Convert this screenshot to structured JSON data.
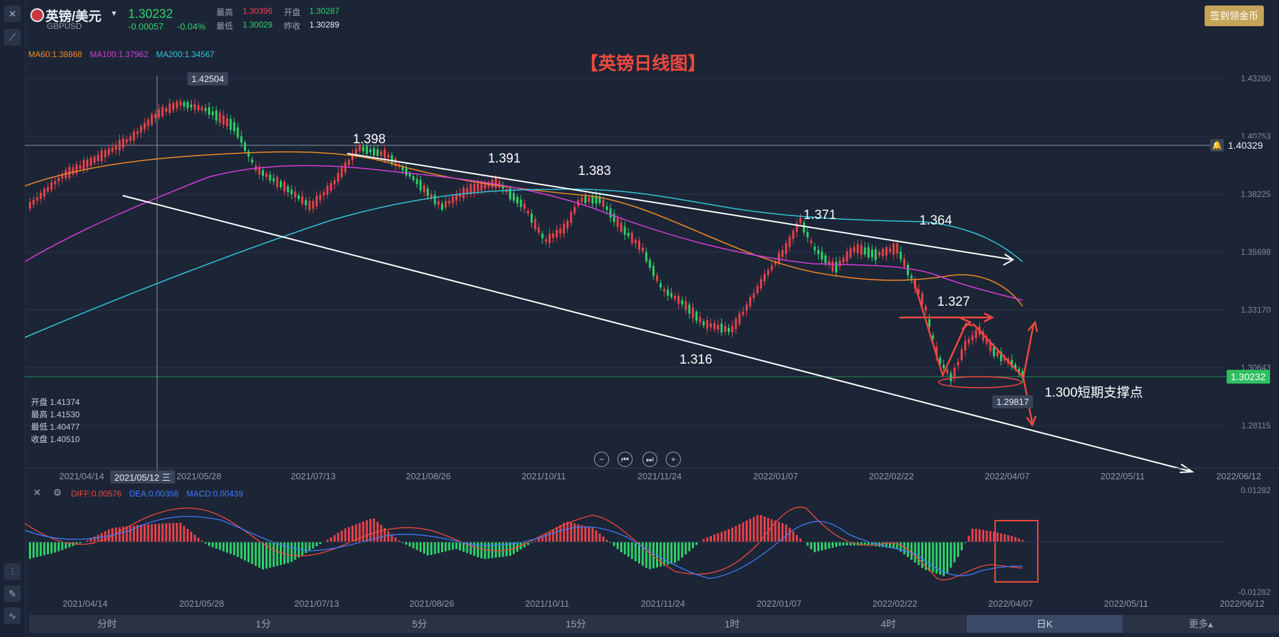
{
  "symbol": {
    "name": "英镑/美元",
    "code": "GBPUSD",
    "price": "1.30232",
    "change": "-0.00057",
    "change_pct": "-0.04%"
  },
  "quote": {
    "high_label": "最高",
    "high": "1.30396",
    "open_label": "开盘",
    "open": "1.30287",
    "low_label": "最低",
    "low": "1.30029",
    "prev_close_label": "昨收",
    "prev_close": "1.30289"
  },
  "checkin_button": "签到领金币",
  "chart_title": "【英镑日线图】",
  "ma_legend": {
    "ma60": "MA60:1.38868",
    "ma100": "MA100:1.37962",
    "ma200": "MA200:1.34567",
    "colors": {
      "ma60": "#f08a24",
      "ma100": "#d63cd9",
      "ma200": "#2fc6d8"
    }
  },
  "y_axis": [
    "1.43260",
    "1.40753",
    "1.38225",
    "1.35698",
    "1.33170",
    "1.30643",
    "1.28115"
  ],
  "price_tags": {
    "crosshair": "1.40329",
    "current": "1.30232",
    "peak": "1.42504",
    "low": "1.29817"
  },
  "ohlc_panel": {
    "open": "开盘 1.41374",
    "high": "最高 1.41530",
    "low": "最低 1.40477",
    "close": "收盘 1.40510"
  },
  "x_axis": [
    "2021/04/14",
    "2021/05/28",
    "2021/07/13",
    "2021/08/26",
    "2021/10/11",
    "2021/11/24",
    "2022/01/07",
    "2022/02/22",
    "2022/04/07",
    "2022/05/11",
    "2022/06/12"
  ],
  "x_axis_cursor": "2021/05/12 三",
  "annotations": {
    "a1": "1.398",
    "a2": "1.391",
    "a3": "1.383",
    "a4": "1.371",
    "a5": "1.364",
    "a6": "1.327",
    "a7": "1.316",
    "a8": "1.300短期支撑点"
  },
  "macd": {
    "diff": "DIFF:0.00576",
    "dea": "DEA:0.00356",
    "macd": "MACD:0.00439",
    "y_top": "0.01282",
    "y_bottom": "-0.01282",
    "colors": {
      "diff": "#f0483e",
      "dea": "#3f7bff",
      "macd": "#3f7bff"
    }
  },
  "timeframe_tabs": [
    "分时",
    "1分",
    "5分",
    "15分",
    "1时",
    "4时",
    "日K",
    "更多▴"
  ],
  "active_tab": "日K"
}
